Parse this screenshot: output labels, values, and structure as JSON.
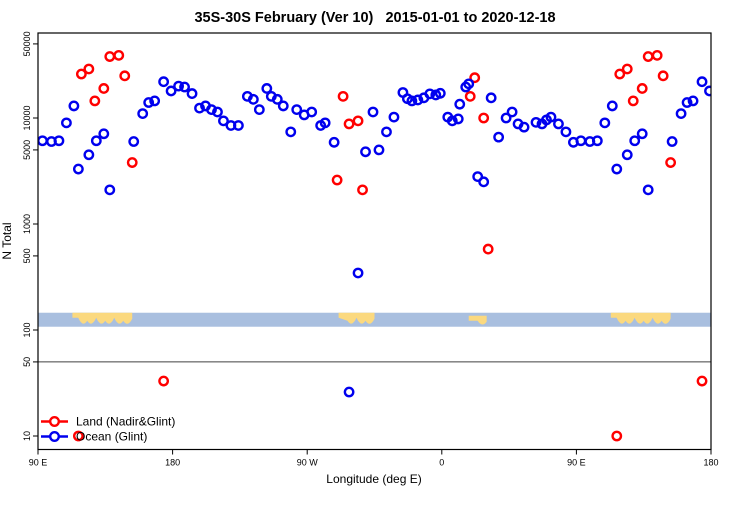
{
  "chart_data": {
    "type": "scatter",
    "title": "35S-30S February (Ver 10)   2015-01-01 to 2020-12-18",
    "xlabel": "Longitude (deg E)",
    "ylabel": "N Total",
    "x_axis": {
      "range_deg": [
        90,
        540
      ],
      "ticks": [
        {
          "value": 90,
          "label": "90 E"
        },
        {
          "value": 180,
          "label": "180"
        },
        {
          "value": 270,
          "label": "90 W"
        },
        {
          "value": 360,
          "label": "0"
        },
        {
          "value": 450,
          "label": "90 E"
        },
        {
          "value": 540,
          "label": "180"
        }
      ]
    },
    "y_axis": {
      "scale": "log",
      "range": [
        8,
        60000
      ],
      "ticks": [
        {
          "value": 50000,
          "label": "50000"
        },
        {
          "value": 10000,
          "label": "10000"
        },
        {
          "value": 5000,
          "label": "5000"
        },
        {
          "value": 1000,
          "label": "1000"
        },
        {
          "value": 500,
          "label": "500"
        },
        {
          "value": 100,
          "label": "100"
        },
        {
          "value": 50,
          "label": "50"
        },
        {
          "value": 10,
          "label": "10"
        }
      ]
    },
    "reference_line": {
      "y_value": 50,
      "color": "#404040"
    },
    "map_band": {
      "ocean_color": "#a9bfdf",
      "land_color": "#fbd97f",
      "n_center": 125,
      "land_patches_lon": [
        {
          "from": 113,
          "to": 153,
          "inset_top": 0
        },
        {
          "from": 291,
          "to": 315,
          "inset_top": 0
        },
        {
          "from": 378,
          "to": 390,
          "inset_top": 3
        },
        {
          "from": 473,
          "to": 513,
          "inset_top": 0
        }
      ]
    },
    "legend_position": "bottom-left",
    "grid": false,
    "series": [
      {
        "name": "Land (Nadir&Glint)",
        "color": "#ff0000",
        "marker": "open-circle",
        "points": [
          [
            138,
            38000
          ],
          [
            144,
            39000
          ],
          [
            119,
            26000
          ],
          [
            124,
            29000
          ],
          [
            148,
            25000
          ],
          [
            134,
            19000
          ],
          [
            128,
            14500
          ],
          [
            153,
            3800
          ],
          [
            294,
            16000
          ],
          [
            290,
            2600
          ],
          [
            298,
            8800
          ],
          [
            304,
            9400
          ],
          [
            307,
            2100
          ],
          [
            382,
            24000
          ],
          [
            379,
            16000
          ],
          [
            388,
            10000
          ],
          [
            391,
            580
          ],
          [
            174,
            33
          ],
          [
            117,
            10
          ],
          [
            498,
            38000
          ],
          [
            504,
            39000
          ],
          [
            479,
            26000
          ],
          [
            484,
            29000
          ],
          [
            508,
            25000
          ],
          [
            494,
            19000
          ],
          [
            488,
            14500
          ],
          [
            513,
            3800
          ],
          [
            534,
            33
          ],
          [
            477,
            10
          ]
        ]
      },
      {
        "name": "Ocean (Glint)",
        "color": "#0000ee",
        "marker": "open-circle",
        "points": [
          [
            93,
            6100
          ],
          [
            99,
            6000
          ],
          [
            104,
            6100
          ],
          [
            109,
            9000
          ],
          [
            114,
            13000
          ],
          [
            117,
            3300
          ],
          [
            124,
            4500
          ],
          [
            129,
            6100
          ],
          [
            134,
            7100
          ],
          [
            138,
            2100
          ],
          [
            154,
            6000
          ],
          [
            160,
            11000
          ],
          [
            164,
            14000
          ],
          [
            168,
            14500
          ],
          [
            174,
            22000
          ],
          [
            179,
            18000
          ],
          [
            184,
            20000
          ],
          [
            188,
            19600
          ],
          [
            193,
            17000
          ],
          [
            198,
            12400
          ],
          [
            202,
            13000
          ],
          [
            206,
            12000
          ],
          [
            210,
            11400
          ],
          [
            214,
            9400
          ],
          [
            219,
            8500
          ],
          [
            224,
            8500
          ],
          [
            230,
            16000
          ],
          [
            234,
            15000
          ],
          [
            238,
            12000
          ],
          [
            243,
            19000
          ],
          [
            246,
            16000
          ],
          [
            250,
            15000
          ],
          [
            254,
            13000
          ],
          [
            259,
            7400
          ],
          [
            263,
            12000
          ],
          [
            268,
            10700
          ],
          [
            273,
            11400
          ],
          [
            279,
            8500
          ],
          [
            282,
            9000
          ],
          [
            288,
            5900
          ],
          [
            304,
            345
          ],
          [
            298,
            26
          ],
          [
            309,
            4800
          ],
          [
            314,
            11400
          ],
          [
            318,
            5000
          ],
          [
            323,
            7400
          ],
          [
            328,
            10200
          ],
          [
            334,
            17400
          ],
          [
            337,
            15200
          ],
          [
            340,
            14500
          ],
          [
            344,
            14800
          ],
          [
            348,
            15500
          ],
          [
            352,
            16900
          ],
          [
            356,
            16500
          ],
          [
            359,
            17100
          ],
          [
            364,
            10200
          ],
          [
            367,
            9400
          ],
          [
            371,
            9800
          ],
          [
            372,
            13500
          ],
          [
            376,
            19600
          ],
          [
            378,
            21000
          ],
          [
            384,
            2800
          ],
          [
            388,
            2500
          ],
          [
            393,
            15500
          ],
          [
            398,
            6600
          ],
          [
            403,
            10000
          ],
          [
            407,
            11400
          ],
          [
            411,
            8800
          ],
          [
            415,
            8200
          ],
          [
            423,
            9100
          ],
          [
            427,
            8800
          ],
          [
            430,
            9600
          ],
          [
            433,
            10200
          ],
          [
            438,
            8800
          ],
          [
            443,
            7400
          ],
          [
            448,
            5900
          ],
          [
            453,
            6100
          ],
          [
            459,
            6000
          ],
          [
            464,
            6100
          ],
          [
            469,
            9000
          ],
          [
            474,
            13000
          ],
          [
            477,
            3300
          ],
          [
            484,
            4500
          ],
          [
            489,
            6100
          ],
          [
            494,
            7100
          ],
          [
            498,
            2100
          ],
          [
            514,
            6000
          ],
          [
            520,
            11000
          ],
          [
            524,
            14000
          ],
          [
            528,
            14500
          ],
          [
            534,
            22000
          ],
          [
            539,
            18000
          ]
        ]
      }
    ]
  }
}
